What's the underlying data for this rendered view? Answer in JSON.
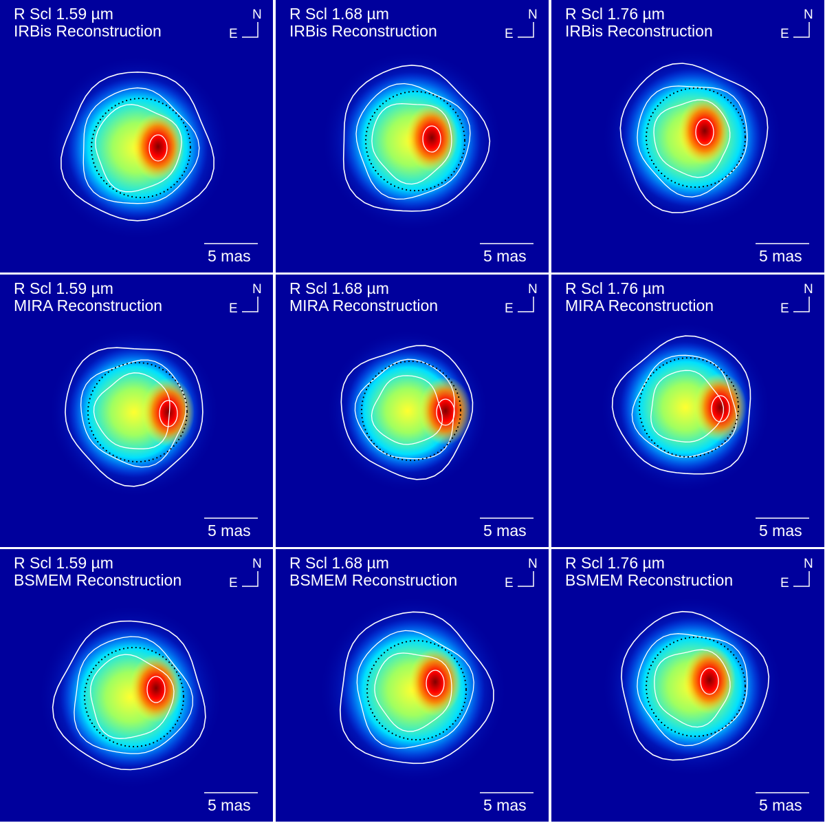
{
  "figure": {
    "compass": {
      "north": "N",
      "east": "E"
    },
    "scale_bar": "5 mas",
    "colormap": [
      "#00009c",
      "#0050ff",
      "#00e0ff",
      "#a0ff60",
      "#ffff30",
      "#ff8000",
      "#ff0000",
      "#800000"
    ],
    "panels": [
      {
        "target": "R Scl",
        "wavelength": "1.59 µm",
        "method": "IRBis Reconstruction"
      },
      {
        "target": "R Scl",
        "wavelength": "1.68 µm",
        "method": "IRBis Reconstruction"
      },
      {
        "target": "R Scl",
        "wavelength": "1.76 µm",
        "method": "IRBis Reconstruction"
      },
      {
        "target": "R Scl",
        "wavelength": "1.59 µm",
        "method": "MIRA Reconstruction"
      },
      {
        "target": "R Scl",
        "wavelength": "1.68 µm",
        "method": "MIRA Reconstruction"
      },
      {
        "target": "R Scl",
        "wavelength": "1.76 µm",
        "method": "MIRA Reconstruction"
      },
      {
        "target": "R Scl",
        "wavelength": "1.59 µm",
        "method": "BSMEM Reconstruction"
      },
      {
        "target": "R Scl",
        "wavelength": "1.68 µm",
        "method": "BSMEM Reconstruction"
      },
      {
        "target": "R Scl",
        "wavelength": "1.76 µm",
        "method": "BSMEM Reconstruction"
      }
    ]
  }
}
